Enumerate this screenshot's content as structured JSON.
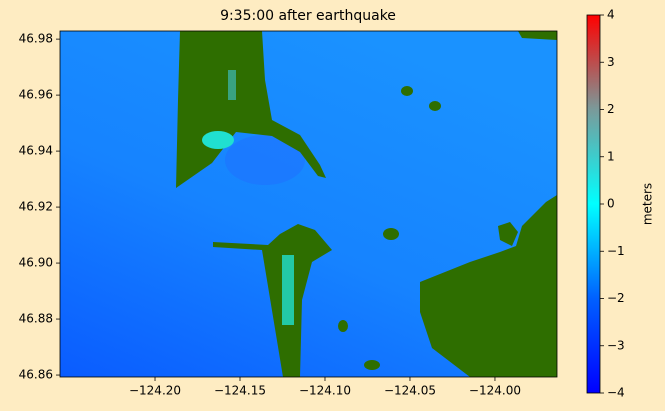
{
  "chart_data": {
    "type": "heatmap",
    "title": "9:35:00 after earthquake",
    "xlim": [
      -124.2559,
      -123.9635
    ],
    "ylim": [
      46.8593,
      46.9829
    ],
    "xticks": [
      {
        "value": -124.2,
        "label": "−124.20"
      },
      {
        "value": -124.15,
        "label": "−124.15"
      },
      {
        "value": -124.1,
        "label": "−124.10"
      },
      {
        "value": -124.05,
        "label": "−124.05"
      },
      {
        "value": -124.0,
        "label": "−124.00"
      }
    ],
    "yticks": [
      46.86,
      46.88,
      {
        "value": 46.9,
        "label": "46.90"
      },
      46.92,
      46.94,
      46.96,
      46.98
    ],
    "colorbar": {
      "label": "meters",
      "lim": [
        -4,
        4
      ],
      "ticks": [
        {
          "value": -4,
          "label": "−4"
        },
        {
          "value": -3,
          "label": "−3"
        },
        {
          "value": -2,
          "label": "−2"
        },
        {
          "value": -1,
          "label": "−1"
        },
        0,
        1,
        2,
        3,
        4
      ]
    }
  }
}
